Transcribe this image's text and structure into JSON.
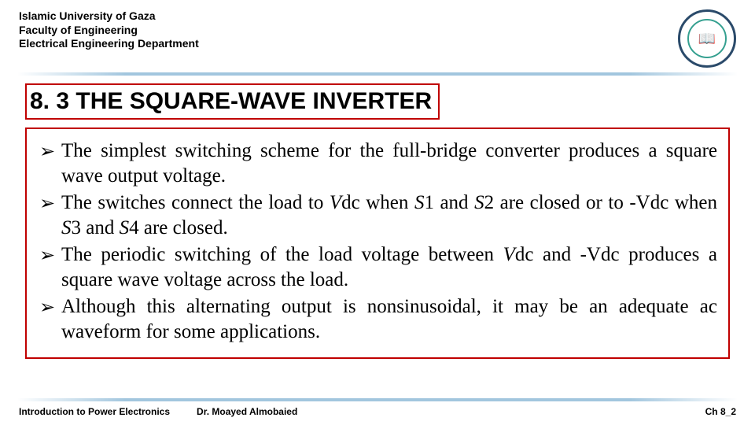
{
  "header": {
    "line1": "Islamic University of Gaza",
    "line2": "Faculty of Engineering",
    "line3": "Electrical Engineering Department"
  },
  "logo": {
    "glyph": "📖",
    "outer_border_color": "#2a4a6a",
    "inner_border_color": "#35a090"
  },
  "title": {
    "text": "8. 3 THE SQUARE-WAVE INVERTER",
    "border_color": "#c00000",
    "font_size": 30,
    "font_weight": "bold"
  },
  "content": {
    "border_color": "#c00000",
    "bullet_glyph": "➢",
    "font_family": "Times New Roman",
    "font_size": 25,
    "items": [
      {
        "html": "The simplest switching scheme for the full-bridge converter produces a square wave output voltage."
      },
      {
        "html": "The switches connect the load to <span class=\"italic\">V</span>dc when <span class=\"italic\">S</span>1 and <span class=\"italic\">S</span>2 are closed or to -Vdc when <span class=\"italic\">S</span>3 and <span class=\"italic\">S</span>4 are closed."
      },
      {
        "html": "The periodic switching of the load voltage between <span class=\"italic\">V</span>dc and -Vdc produces a square wave voltage across the load."
      },
      {
        "html": "Although this alternating output is nonsinusoidal, it may be an adequate ac waveform for some applications."
      }
    ]
  },
  "footer": {
    "course": "Introduction to Power Electronics",
    "instructor": "Dr. Moayed Almobaied",
    "page": "Ch 8_2"
  },
  "colors": {
    "background": "#ffffff",
    "divider_accent": "#6aa3c8",
    "text": "#000000"
  }
}
